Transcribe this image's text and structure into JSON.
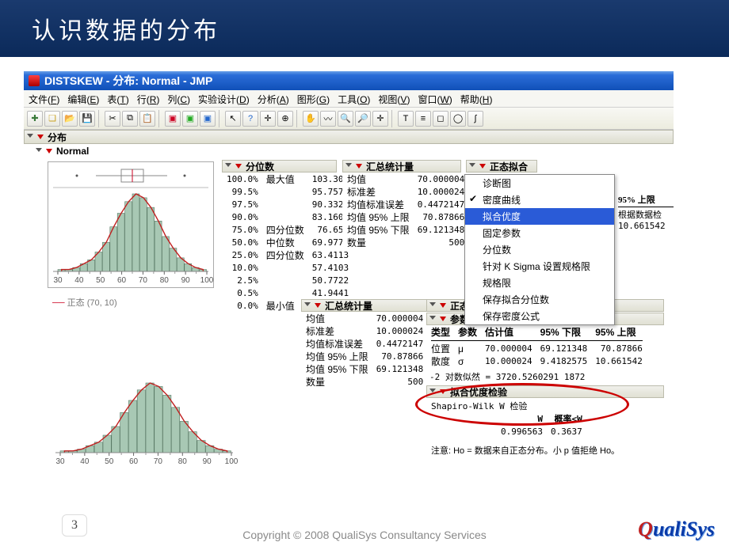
{
  "slide": {
    "title": "认识数据的分布",
    "page_number": "3",
    "copyright": "Copyright © 2008 QualiSys Consultancy Services",
    "logo_text": "QualiSys"
  },
  "window": {
    "title": "DISTSKEW - 分布: Normal - JMP"
  },
  "menu": {
    "items": [
      {
        "label": "文件",
        "accel": "F"
      },
      {
        "label": "编辑",
        "accel": "E"
      },
      {
        "label": "表",
        "accel": "T"
      },
      {
        "label": "行",
        "accel": "R"
      },
      {
        "label": "列",
        "accel": "C"
      },
      {
        "label": "实验设计",
        "accel": "D"
      },
      {
        "label": "分析",
        "accel": "A"
      },
      {
        "label": "图形",
        "accel": "G"
      },
      {
        "label": "工具",
        "accel": "O"
      },
      {
        "label": "视图",
        "accel": "V"
      },
      {
        "label": "窗口",
        "accel": "W"
      },
      {
        "label": "帮助",
        "accel": "H"
      }
    ]
  },
  "sections": {
    "root": "分布",
    "variable": "Normal",
    "quantiles": "分位数",
    "summary": "汇总统计量",
    "normalfit": "正态拟合",
    "params": "参数估计值",
    "gof": "拟合优度检验",
    "legend": "正态 (70, 10)"
  },
  "context_menu": {
    "items": [
      "诊断图",
      "密度曲线",
      "拟合优度",
      "固定参数",
      "分位数",
      "针对 K Sigma 设置规格限",
      "规格限",
      "保存拟合分位数",
      "保存密度公式"
    ],
    "checked_index": 1,
    "selected_index": 2
  },
  "quantiles": {
    "rows": [
      [
        "100.0%",
        "最大值",
        "103.301"
      ],
      [
        "99.5%",
        "",
        "95.7571"
      ],
      [
        "97.5%",
        "",
        "90.3322"
      ],
      [
        "90.0%",
        "",
        "83.1602"
      ],
      [
        "75.0%",
        "四分位数",
        "76.653"
      ],
      [
        "50.0%",
        "中位数",
        "69.9775"
      ],
      [
        "25.0%",
        "四分位数",
        "63.4113"
      ],
      [
        "10.0%",
        "",
        "57.4103"
      ],
      [
        "2.5%",
        "",
        "50.7722"
      ],
      [
        "0.5%",
        "",
        "41.9441"
      ],
      [
        "0.0%",
        "最小值",
        ""
      ]
    ]
  },
  "summary1": {
    "rows": [
      [
        "均值",
        "70.000004"
      ],
      [
        "标准差",
        "10.000024"
      ],
      [
        "均值标准误差",
        "0.4472147"
      ],
      [
        "均值 95% 上限",
        "70.87866"
      ],
      [
        "均值 95% 下限",
        "69.121348"
      ],
      [
        "数量",
        "500"
      ]
    ]
  },
  "summary2": {
    "rows": [
      [
        "均值",
        "70.000004"
      ],
      [
        "标准差",
        "10.000024"
      ],
      [
        "均值标准误差",
        "0.4472147"
      ],
      [
        "均值 95% 上限",
        "70.87866"
      ],
      [
        "均值 95% 下限",
        "69.121348"
      ],
      [
        "数量",
        "500"
      ]
    ]
  },
  "extra_cols": {
    "head1": "95% 上限",
    "row1": "根据数据检",
    "row2": "10.661542"
  },
  "params": {
    "header": [
      "类型",
      "参数",
      "估计值",
      "95% 下限",
      "95% 上限"
    ],
    "rows": [
      [
        "位置",
        "μ",
        "70.000004",
        "69.121348",
        "70.87866"
      ],
      [
        "散度",
        "σ",
        "10.000024",
        "9.4182575",
        "10.661542"
      ]
    ],
    "loglik": "-2 对数似然 = 3720.5260291 1872"
  },
  "gof": {
    "test": "Shapiro-Wilk W 检验",
    "cols": [
      "W",
      "概率<W"
    ],
    "vals": [
      "0.996563",
      "0.3637"
    ],
    "note": "注意: Ho = 数据来自正态分布。小 p 值拒绝 Ho。"
  },
  "hist": {
    "ticks": [
      30,
      40,
      50,
      60,
      70,
      80,
      90,
      100
    ],
    "bars": [
      1,
      1,
      2,
      4,
      6,
      10,
      15,
      23,
      30,
      36,
      40,
      38,
      33,
      26,
      18,
      12,
      7,
      4,
      2,
      1
    ],
    "bar_color": "#a8c8b4",
    "bar_stroke": "#5a7a66",
    "curve_color": "#c02020",
    "bg": "#ffffff",
    "grid": "#d0d0d0"
  }
}
